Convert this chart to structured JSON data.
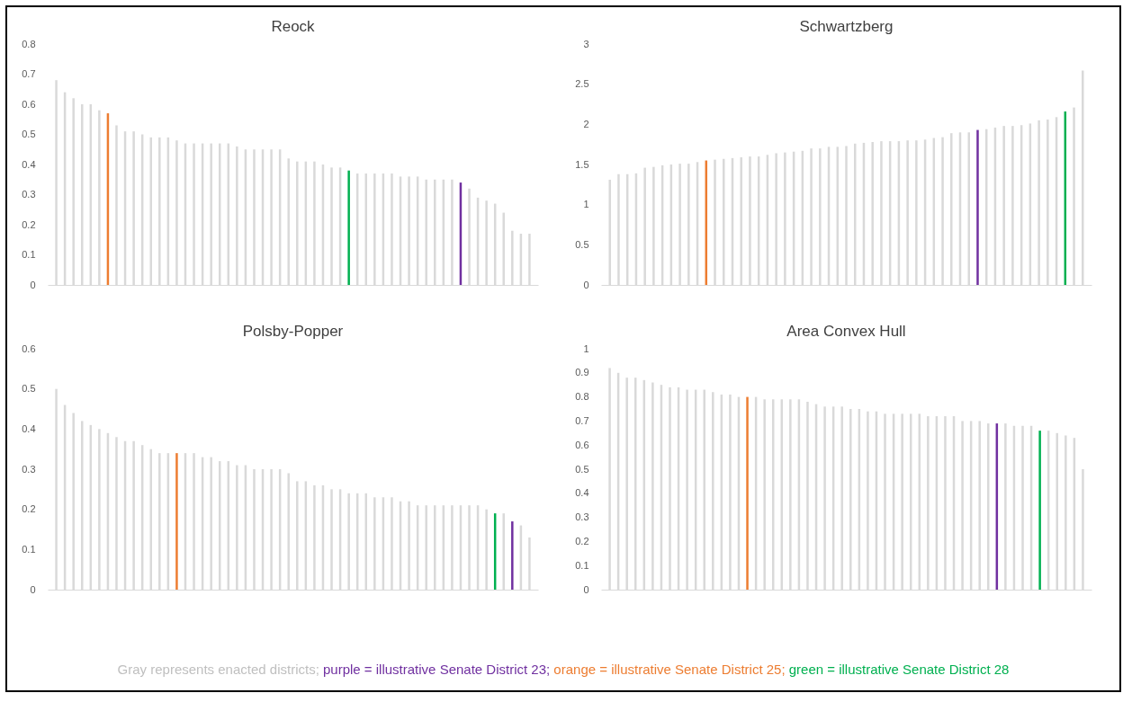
{
  "chart_data": [
    {
      "type": "bar",
      "title": "Reock",
      "categories": [
        null,
        null,
        null,
        null,
        null,
        null,
        null,
        null,
        null,
        null,
        null,
        null,
        null,
        null,
        null,
        null,
        null,
        null,
        null,
        null,
        null,
        null,
        null,
        null,
        null,
        null,
        null,
        null,
        null,
        null,
        null,
        null,
        null,
        null,
        null,
        null,
        null,
        null,
        null,
        null,
        null,
        null,
        null,
        null,
        null,
        null,
        null,
        null,
        null,
        null,
        null,
        null,
        null,
        null,
        null,
        null
      ],
      "values": [
        0.68,
        0.64,
        0.62,
        0.6,
        0.6,
        0.58,
        0.57,
        0.53,
        0.51,
        0.51,
        0.5,
        0.49,
        0.49,
        0.49,
        0.48,
        0.47,
        0.47,
        0.47,
        0.47,
        0.47,
        0.47,
        0.46,
        0.45,
        0.45,
        0.45,
        0.45,
        0.45,
        0.42,
        0.41,
        0.41,
        0.41,
        0.4,
        0.39,
        0.39,
        0.38,
        0.37,
        0.37,
        0.37,
        0.37,
        0.37,
        0.36,
        0.36,
        0.36,
        0.35,
        0.35,
        0.35,
        0.35,
        0.34,
        0.32,
        0.29,
        0.28,
        0.27,
        0.24,
        0.18,
        0.17,
        0.17
      ],
      "colors": [
        "#d9d9d9",
        "#d9d9d9",
        "#d9d9d9",
        "#d9d9d9",
        "#d9d9d9",
        "#d9d9d9",
        "#ed7d31",
        "#d9d9d9",
        "#d9d9d9",
        "#d9d9d9",
        "#d9d9d9",
        "#d9d9d9",
        "#d9d9d9",
        "#d9d9d9",
        "#d9d9d9",
        "#d9d9d9",
        "#d9d9d9",
        "#d9d9d9",
        "#d9d9d9",
        "#d9d9d9",
        "#d9d9d9",
        "#d9d9d9",
        "#d9d9d9",
        "#d9d9d9",
        "#d9d9d9",
        "#d9d9d9",
        "#d9d9d9",
        "#d9d9d9",
        "#d9d9d9",
        "#d9d9d9",
        "#d9d9d9",
        "#d9d9d9",
        "#d9d9d9",
        "#d9d9d9",
        "#00b050",
        "#d9d9d9",
        "#d9d9d9",
        "#d9d9d9",
        "#d9d9d9",
        "#d9d9d9",
        "#d9d9d9",
        "#d9d9d9",
        "#d9d9d9",
        "#d9d9d9",
        "#d9d9d9",
        "#d9d9d9",
        "#d9d9d9",
        "#7030a0",
        "#d9d9d9",
        "#d9d9d9",
        "#d9d9d9",
        "#d9d9d9",
        "#d9d9d9",
        "#d9d9d9",
        "#d9d9d9",
        "#d9d9d9"
      ],
      "ylim": [
        0,
        0.8
      ],
      "yticks": [
        0,
        0.1,
        0.2,
        0.3,
        0.4,
        0.5,
        0.6,
        0.7,
        0.8
      ]
    },
    {
      "type": "bar",
      "title": "Schwartzberg",
      "categories": [
        null,
        null,
        null,
        null,
        null,
        null,
        null,
        null,
        null,
        null,
        null,
        null,
        null,
        null,
        null,
        null,
        null,
        null,
        null,
        null,
        null,
        null,
        null,
        null,
        null,
        null,
        null,
        null,
        null,
        null,
        null,
        null,
        null,
        null,
        null,
        null,
        null,
        null,
        null,
        null,
        null,
        null,
        null,
        null,
        null,
        null,
        null,
        null,
        null,
        null,
        null,
        null,
        null,
        null,
        null
      ],
      "values": [
        1.31,
        1.38,
        1.38,
        1.39,
        1.46,
        1.47,
        1.49,
        1.5,
        1.51,
        1.51,
        1.53,
        1.55,
        1.56,
        1.57,
        1.58,
        1.59,
        1.6,
        1.6,
        1.62,
        1.64,
        1.65,
        1.66,
        1.67,
        1.7,
        1.7,
        1.72,
        1.72,
        1.73,
        1.76,
        1.77,
        1.78,
        1.79,
        1.79,
        1.79,
        1.8,
        1.8,
        1.81,
        1.83,
        1.84,
        1.89,
        1.9,
        1.9,
        1.93,
        1.94,
        1.96,
        1.98,
        1.98,
        1.99,
        2.01,
        2.05,
        2.06,
        2.09,
        2.16,
        2.21,
        2.67
      ],
      "colors": [
        "#d9d9d9",
        "#d9d9d9",
        "#d9d9d9",
        "#d9d9d9",
        "#d9d9d9",
        "#d9d9d9",
        "#d9d9d9",
        "#d9d9d9",
        "#d9d9d9",
        "#d9d9d9",
        "#d9d9d9",
        "#ed7d31",
        "#d9d9d9",
        "#d9d9d9",
        "#d9d9d9",
        "#d9d9d9",
        "#d9d9d9",
        "#d9d9d9",
        "#d9d9d9",
        "#d9d9d9",
        "#d9d9d9",
        "#d9d9d9",
        "#d9d9d9",
        "#d9d9d9",
        "#d9d9d9",
        "#d9d9d9",
        "#d9d9d9",
        "#d9d9d9",
        "#d9d9d9",
        "#d9d9d9",
        "#d9d9d9",
        "#d9d9d9",
        "#d9d9d9",
        "#d9d9d9",
        "#d9d9d9",
        "#d9d9d9",
        "#d9d9d9",
        "#d9d9d9",
        "#d9d9d9",
        "#d9d9d9",
        "#d9d9d9",
        "#d9d9d9",
        "#7030a0",
        "#d9d9d9",
        "#d9d9d9",
        "#d9d9d9",
        "#d9d9d9",
        "#d9d9d9",
        "#d9d9d9",
        "#d9d9d9",
        "#d9d9d9",
        "#d9d9d9",
        "#00b050",
        "#d9d9d9",
        "#d9d9d9"
      ],
      "ylim": [
        0,
        3
      ],
      "yticks": [
        0,
        0.5,
        1,
        1.5,
        2,
        2.5,
        3
      ]
    },
    {
      "type": "bar",
      "title": "Polsby-Popper",
      "categories": [
        null,
        null,
        null,
        null,
        null,
        null,
        null,
        null,
        null,
        null,
        null,
        null,
        null,
        null,
        null,
        null,
        null,
        null,
        null,
        null,
        null,
        null,
        null,
        null,
        null,
        null,
        null,
        null,
        null,
        null,
        null,
        null,
        null,
        null,
        null,
        null,
        null,
        null,
        null,
        null,
        null,
        null,
        null,
        null,
        null,
        null,
        null,
        null,
        null,
        null,
        null,
        null,
        null,
        null,
        null,
        null
      ],
      "values": [
        0.5,
        0.46,
        0.44,
        0.42,
        0.41,
        0.4,
        0.39,
        0.38,
        0.37,
        0.37,
        0.36,
        0.35,
        0.34,
        0.34,
        0.34,
        0.34,
        0.34,
        0.33,
        0.33,
        0.32,
        0.32,
        0.31,
        0.31,
        0.3,
        0.3,
        0.3,
        0.3,
        0.29,
        0.27,
        0.27,
        0.26,
        0.26,
        0.25,
        0.25,
        0.24,
        0.24,
        0.24,
        0.23,
        0.23,
        0.23,
        0.22,
        0.22,
        0.21,
        0.21,
        0.21,
        0.21,
        0.21,
        0.21,
        0.21,
        0.21,
        0.2,
        0.19,
        0.19,
        0.17,
        0.16,
        0.13
      ],
      "colors": [
        "#d9d9d9",
        "#d9d9d9",
        "#d9d9d9",
        "#d9d9d9",
        "#d9d9d9",
        "#d9d9d9",
        "#d9d9d9",
        "#d9d9d9",
        "#d9d9d9",
        "#d9d9d9",
        "#d9d9d9",
        "#d9d9d9",
        "#d9d9d9",
        "#d9d9d9",
        "#ed7d31",
        "#d9d9d9",
        "#d9d9d9",
        "#d9d9d9",
        "#d9d9d9",
        "#d9d9d9",
        "#d9d9d9",
        "#d9d9d9",
        "#d9d9d9",
        "#d9d9d9",
        "#d9d9d9",
        "#d9d9d9",
        "#d9d9d9",
        "#d9d9d9",
        "#d9d9d9",
        "#d9d9d9",
        "#d9d9d9",
        "#d9d9d9",
        "#d9d9d9",
        "#d9d9d9",
        "#d9d9d9",
        "#d9d9d9",
        "#d9d9d9",
        "#d9d9d9",
        "#d9d9d9",
        "#d9d9d9",
        "#d9d9d9",
        "#d9d9d9",
        "#d9d9d9",
        "#d9d9d9",
        "#d9d9d9",
        "#d9d9d9",
        "#d9d9d9",
        "#d9d9d9",
        "#d9d9d9",
        "#d9d9d9",
        "#d9d9d9",
        "#00b050",
        "#d9d9d9",
        "#7030a0",
        "#d9d9d9",
        "#d9d9d9"
      ],
      "ylim": [
        0,
        0.6
      ],
      "yticks": [
        0,
        0.1,
        0.2,
        0.3,
        0.4,
        0.5,
        0.6
      ]
    },
    {
      "type": "bar",
      "title": "Area Convex Hull",
      "categories": [
        null,
        null,
        null,
        null,
        null,
        null,
        null,
        null,
        null,
        null,
        null,
        null,
        null,
        null,
        null,
        null,
        null,
        null,
        null,
        null,
        null,
        null,
        null,
        null,
        null,
        null,
        null,
        null,
        null,
        null,
        null,
        null,
        null,
        null,
        null,
        null,
        null,
        null,
        null,
        null,
        null,
        null,
        null,
        null,
        null,
        null,
        null,
        null,
        null,
        null,
        null,
        null,
        null,
        null,
        null,
        null
      ],
      "values": [
        0.92,
        0.9,
        0.88,
        0.88,
        0.87,
        0.86,
        0.85,
        0.84,
        0.84,
        0.83,
        0.83,
        0.83,
        0.82,
        0.81,
        0.81,
        0.8,
        0.8,
        0.8,
        0.79,
        0.79,
        0.79,
        0.79,
        0.79,
        0.78,
        0.77,
        0.76,
        0.76,
        0.76,
        0.75,
        0.75,
        0.74,
        0.74,
        0.73,
        0.73,
        0.73,
        0.73,
        0.73,
        0.72,
        0.72,
        0.72,
        0.72,
        0.7,
        0.7,
        0.7,
        0.69,
        0.69,
        0.69,
        0.68,
        0.68,
        0.68,
        0.66,
        0.66,
        0.65,
        0.64,
        0.63,
        0.5
      ],
      "colors": [
        "#d9d9d9",
        "#d9d9d9",
        "#d9d9d9",
        "#d9d9d9",
        "#d9d9d9",
        "#d9d9d9",
        "#d9d9d9",
        "#d9d9d9",
        "#d9d9d9",
        "#d9d9d9",
        "#d9d9d9",
        "#d9d9d9",
        "#d9d9d9",
        "#d9d9d9",
        "#d9d9d9",
        "#d9d9d9",
        "#ed7d31",
        "#d9d9d9",
        "#d9d9d9",
        "#d9d9d9",
        "#d9d9d9",
        "#d9d9d9",
        "#d9d9d9",
        "#d9d9d9",
        "#d9d9d9",
        "#d9d9d9",
        "#d9d9d9",
        "#d9d9d9",
        "#d9d9d9",
        "#d9d9d9",
        "#d9d9d9",
        "#d9d9d9",
        "#d9d9d9",
        "#d9d9d9",
        "#d9d9d9",
        "#d9d9d9",
        "#d9d9d9",
        "#d9d9d9",
        "#d9d9d9",
        "#d9d9d9",
        "#d9d9d9",
        "#d9d9d9",
        "#d9d9d9",
        "#d9d9d9",
        "#d9d9d9",
        "#7030a0",
        "#d9d9d9",
        "#d9d9d9",
        "#d9d9d9",
        "#d9d9d9",
        "#00b050",
        "#d9d9d9",
        "#d9d9d9",
        "#d9d9d9",
        "#d9d9d9",
        "#d9d9d9"
      ],
      "ylim": [
        0,
        1
      ],
      "yticks": [
        0,
        0.1,
        0.2,
        0.3,
        0.4,
        0.5,
        0.6,
        0.7,
        0.8,
        0.9,
        1
      ],
      "annotations": [
        "Gray represents enacted districts;",
        "purple = illustrative Senate District 23;",
        "orange = illustrative Senate District 25;",
        "green = illustrative Senate District 28"
      ]
    }
  ]
}
